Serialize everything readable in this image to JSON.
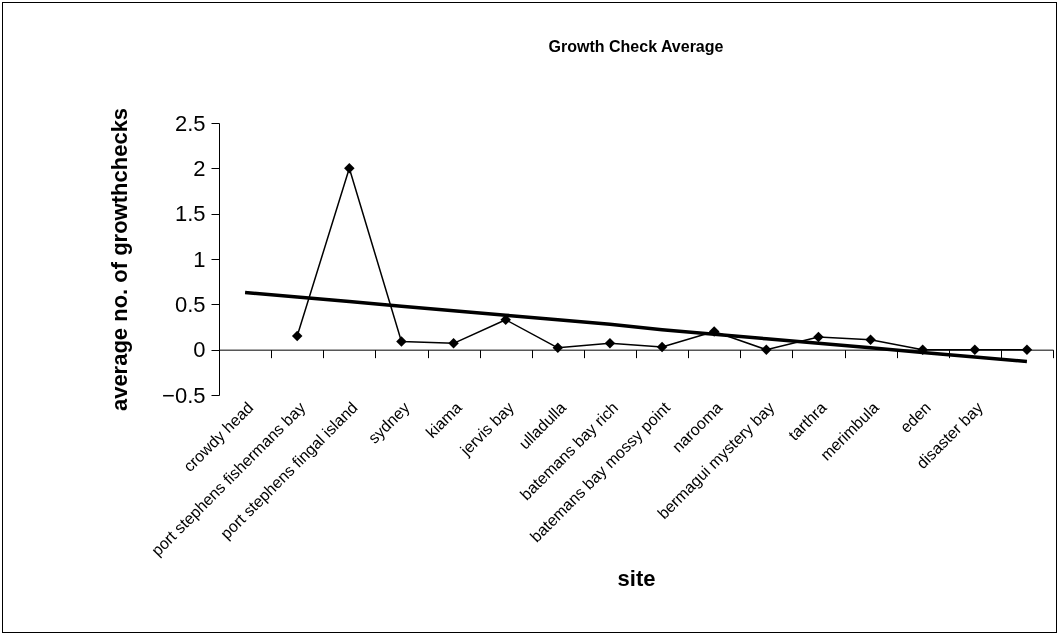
{
  "chart_data": {
    "type": "line",
    "title": "Growth Check Average",
    "xlabel": "site",
    "ylabel": "average no. of growthchecks",
    "categories": [
      "crowdy head",
      "port stephens fishermans bay",
      "port stephens fingal island",
      "sydney",
      "kiama",
      "jervis bay",
      "ulladulla",
      "batemans bay rich",
      "batemans bay mossy point",
      "narooma",
      "bermagui mystery bay",
      "tarthra",
      "merimbula",
      "eden",
      "disaster bay",
      null
    ],
    "series": [
      {
        "color": "#000000",
        "marker": "diamond",
        "values": [
          null,
          0.15,
          2,
          0.09,
          0.07,
          0.33,
          0.02,
          0.07,
          0.03,
          0.2,
          0,
          0.14,
          0.11,
          0,
          0,
          0
        ]
      },
      {
        "type": "line",
        "color": "#000000",
        "marker": "none",
        "values": [
          0.63,
          0.58,
          0.53,
          0.48,
          0.43,
          0.38,
          0.33,
          0.28,
          0.22,
          0.17,
          0.12,
          0.07,
          0.02,
          -0.03,
          -0.08,
          -0.13
        ]
      }
    ],
    "ylim": [
      -0.5,
      2.5
    ],
    "yticks": [
      -0.5,
      0,
      0.5,
      1,
      1.5,
      2,
      2.5
    ],
    "line_style": "solid"
  }
}
